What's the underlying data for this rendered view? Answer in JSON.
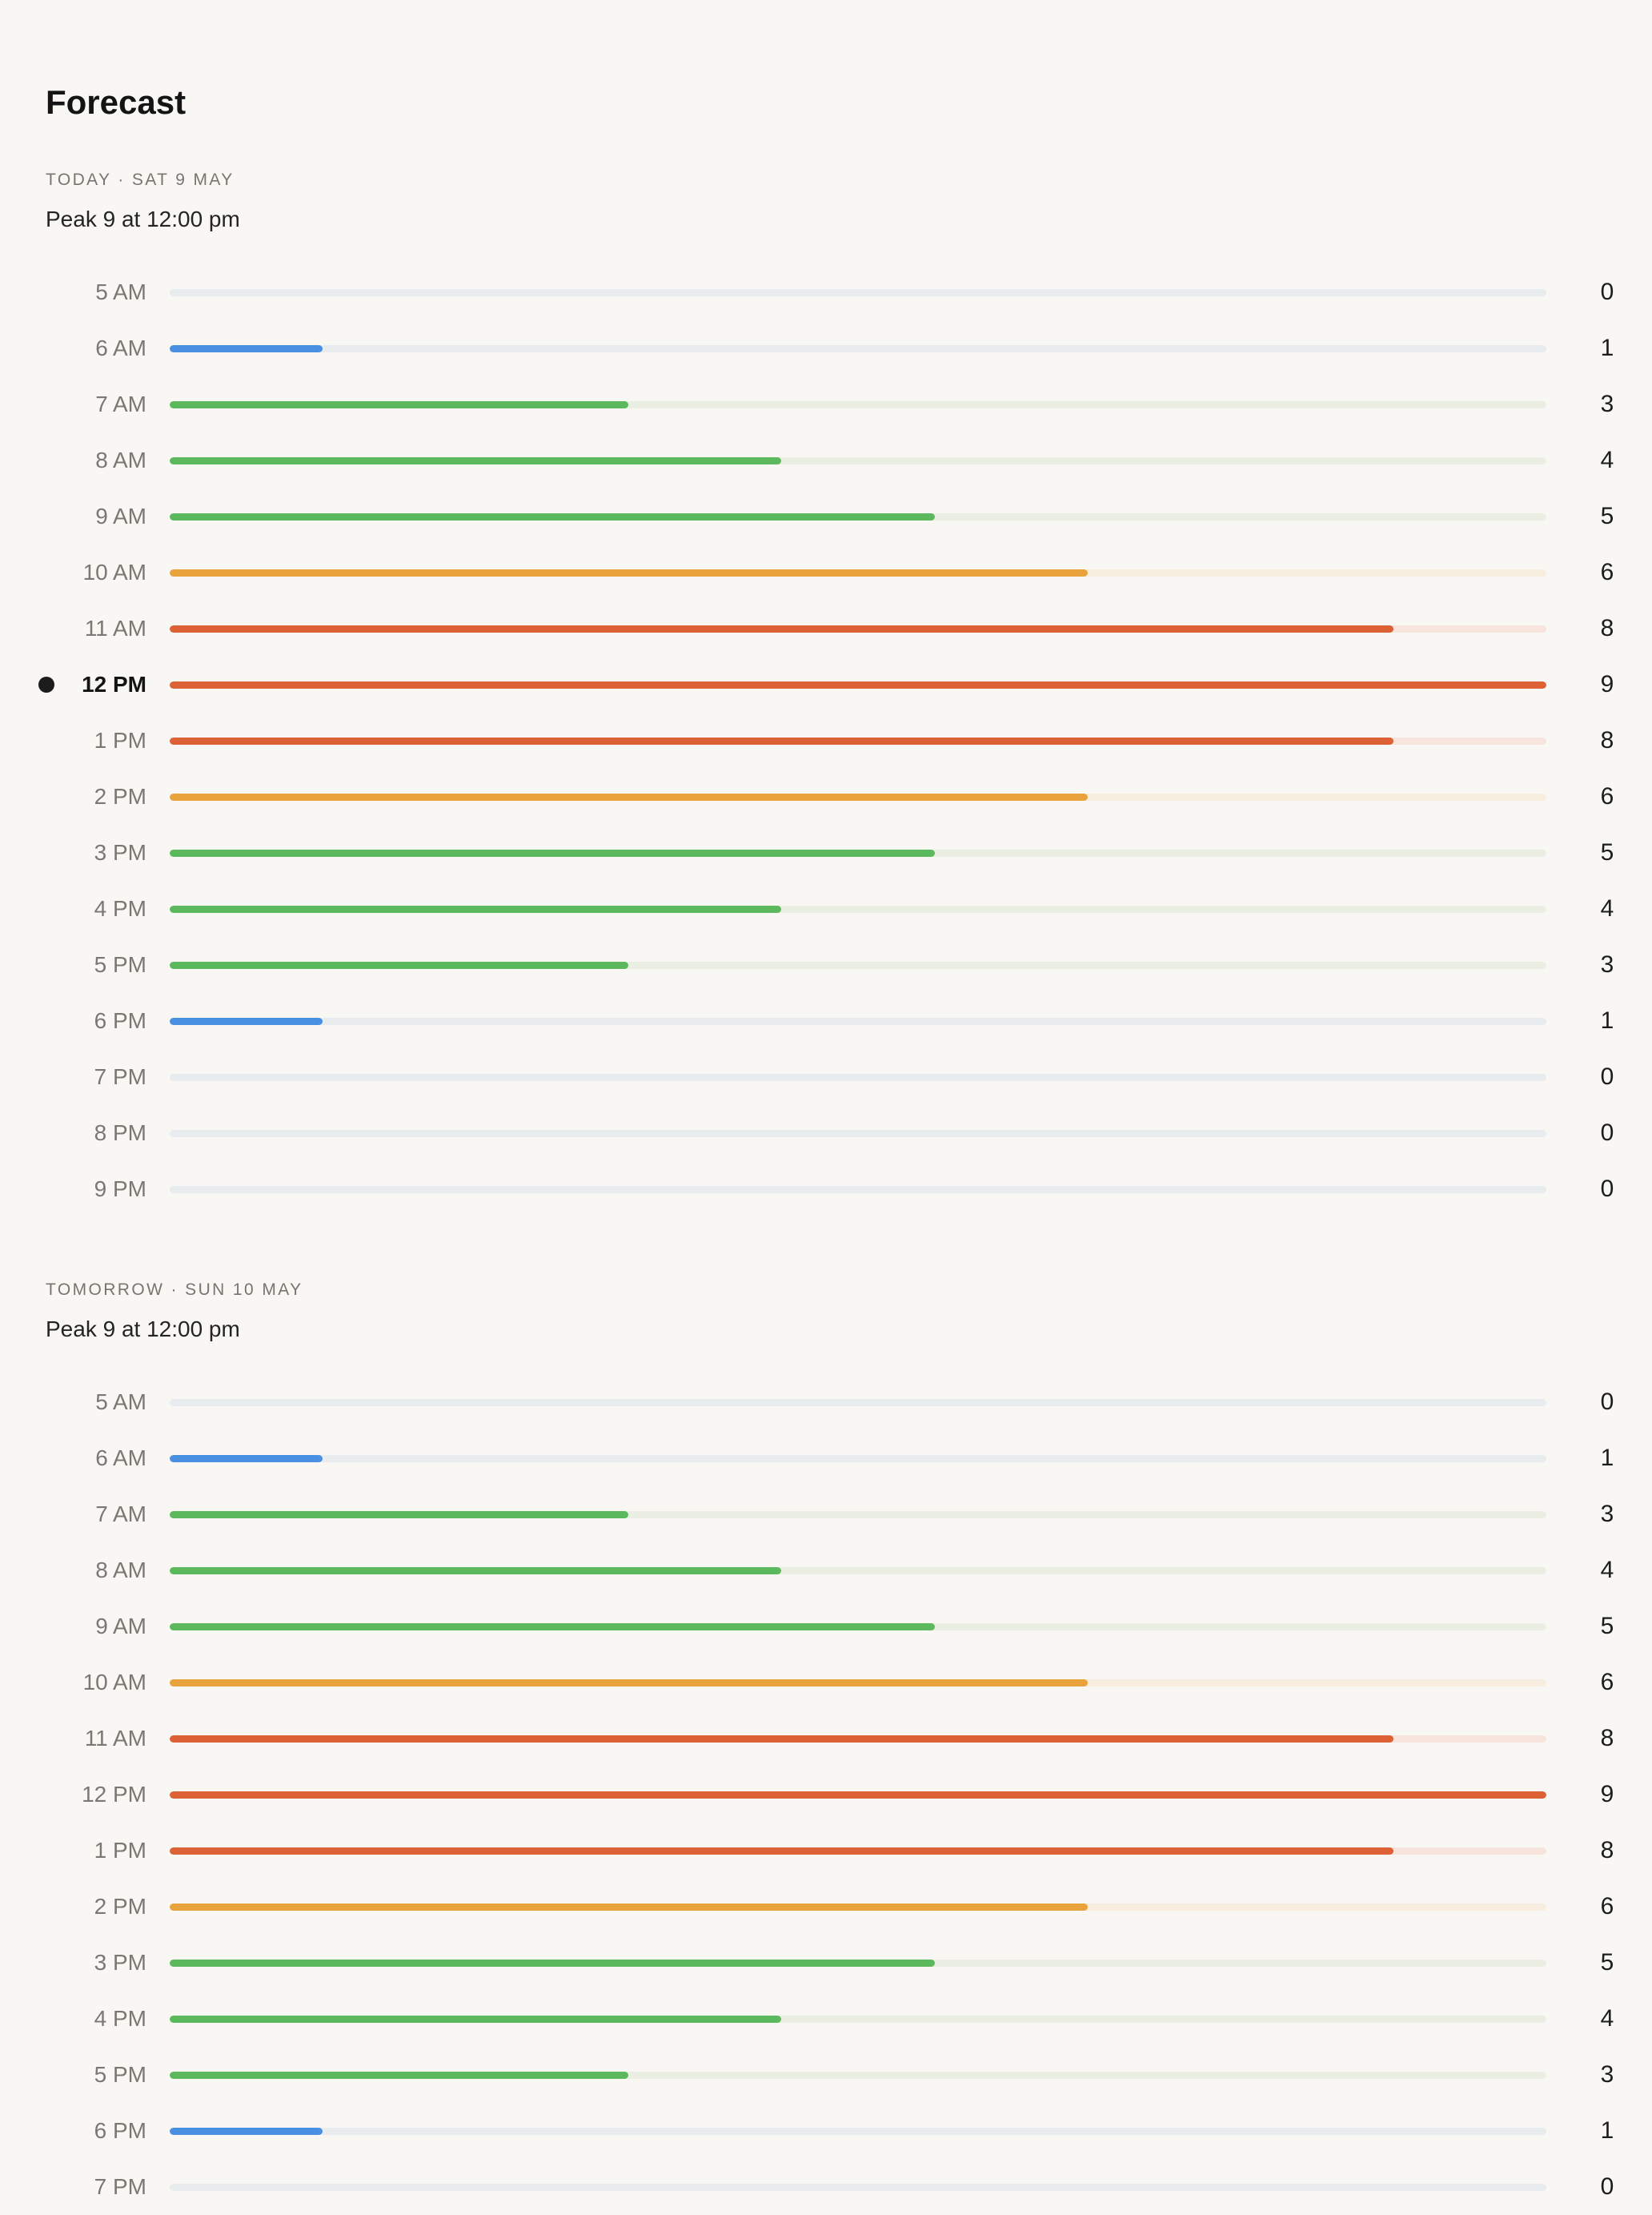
{
  "title": "Forecast",
  "max_value": 9,
  "level_colors": {
    "low": {
      "fill": "#4a90e2",
      "track": "#e8ecef"
    },
    "moderate": {
      "fill": "#5cb85c",
      "track": "#ebefe3"
    },
    "high": {
      "fill": "#e8a33d",
      "track": "#f8eedf"
    },
    "very_high": {
      "fill": "#dc6235",
      "track": "#f7e4dc"
    }
  },
  "sections": [
    {
      "heading": "TODAY · SAT 9 MAY",
      "peak": "Peak 9 at 12:00 pm",
      "hours": [
        {
          "label": "5 AM",
          "value": 0,
          "level": "low"
        },
        {
          "label": "6 AM",
          "value": 1,
          "level": "low"
        },
        {
          "label": "7 AM",
          "value": 3,
          "level": "moderate"
        },
        {
          "label": "8 AM",
          "value": 4,
          "level": "moderate"
        },
        {
          "label": "9 AM",
          "value": 5,
          "level": "moderate"
        },
        {
          "label": "10 AM",
          "value": 6,
          "level": "high"
        },
        {
          "label": "11 AM",
          "value": 8,
          "level": "very_high"
        },
        {
          "label": "12 PM",
          "value": 9,
          "level": "very_high",
          "current": true
        },
        {
          "label": "1 PM",
          "value": 8,
          "level": "very_high"
        },
        {
          "label": "2 PM",
          "value": 6,
          "level": "high"
        },
        {
          "label": "3 PM",
          "value": 5,
          "level": "moderate"
        },
        {
          "label": "4 PM",
          "value": 4,
          "level": "moderate"
        },
        {
          "label": "5 PM",
          "value": 3,
          "level": "moderate"
        },
        {
          "label": "6 PM",
          "value": 1,
          "level": "low"
        },
        {
          "label": "7 PM",
          "value": 0,
          "level": "low"
        },
        {
          "label": "8 PM",
          "value": 0,
          "level": "low"
        },
        {
          "label": "9 PM",
          "value": 0,
          "level": "low"
        }
      ]
    },
    {
      "heading": "TOMORROW · SUN 10 MAY",
      "peak": "Peak 9 at 12:00 pm",
      "hours": [
        {
          "label": "5 AM",
          "value": 0,
          "level": "low"
        },
        {
          "label": "6 AM",
          "value": 1,
          "level": "low"
        },
        {
          "label": "7 AM",
          "value": 3,
          "level": "moderate"
        },
        {
          "label": "8 AM",
          "value": 4,
          "level": "moderate"
        },
        {
          "label": "9 AM",
          "value": 5,
          "level": "moderate"
        },
        {
          "label": "10 AM",
          "value": 6,
          "level": "high"
        },
        {
          "label": "11 AM",
          "value": 8,
          "level": "very_high"
        },
        {
          "label": "12 PM",
          "value": 9,
          "level": "very_high"
        },
        {
          "label": "1 PM",
          "value": 8,
          "level": "very_high"
        },
        {
          "label": "2 PM",
          "value": 6,
          "level": "high"
        },
        {
          "label": "3 PM",
          "value": 5,
          "level": "moderate"
        },
        {
          "label": "4 PM",
          "value": 4,
          "level": "moderate"
        },
        {
          "label": "5 PM",
          "value": 3,
          "level": "moderate"
        },
        {
          "label": "6 PM",
          "value": 1,
          "level": "low"
        },
        {
          "label": "7 PM",
          "value": 0,
          "level": "low"
        }
      ]
    }
  ]
}
